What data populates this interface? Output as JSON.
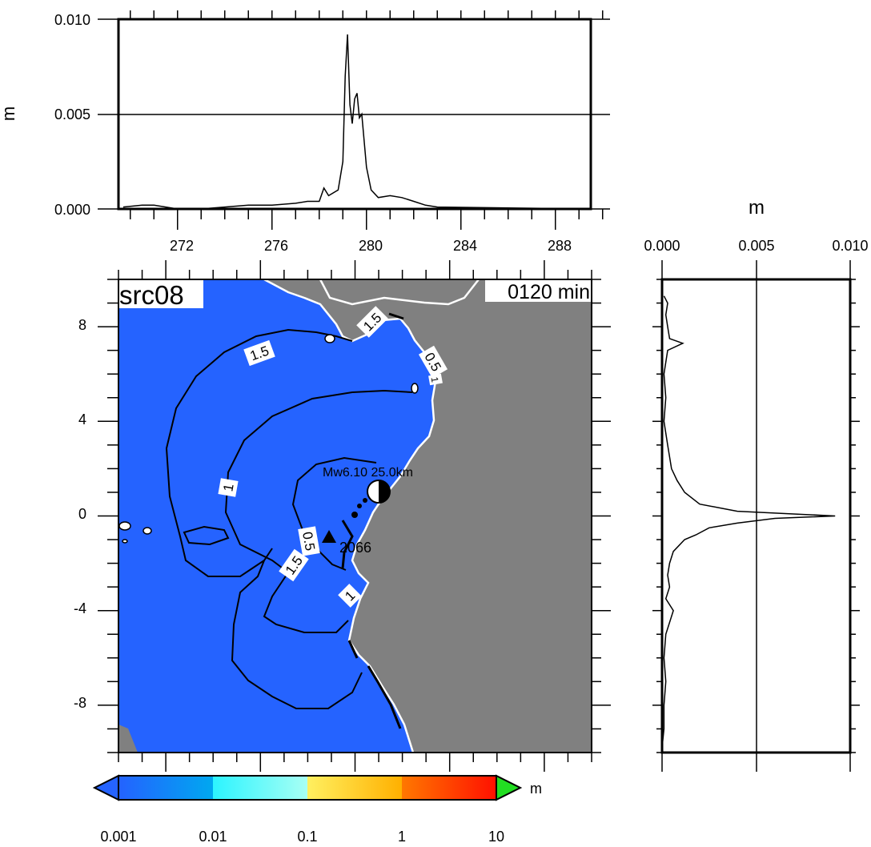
{
  "chart_data": [
    {
      "panel": "top-profile",
      "type": "line",
      "ylabel": "m",
      "xlabel": "",
      "xlim": [
        269.5,
        290.5
      ],
      "ylim": [
        0.0,
        0.01
      ],
      "x_ticks": [
        "272",
        "276",
        "280",
        "284",
        "288"
      ],
      "y_ticks": [
        "0.000",
        "0.005",
        "0.010"
      ],
      "reference_line_y": 0.005,
      "series": [
        {
          "x": [
            269.7,
            270.5,
            271.0,
            271.5,
            272,
            273,
            274,
            275,
            276,
            277,
            277.5,
            278.0,
            278.2,
            278.4,
            278.8,
            279.0,
            279.1,
            279.2,
            279.3,
            279.4,
            279.5,
            279.6,
            279.7,
            279.8,
            280.0,
            280.2,
            280.5,
            281.0,
            281.5,
            282.0,
            282.5,
            283.0,
            289.5
          ],
          "values": [
            0.0001,
            0.0002,
            0.0002,
            0.0001,
            0.0,
            0.0,
            0.0001,
            0.0002,
            0.0002,
            0.0003,
            0.0004,
            0.0004,
            0.0011,
            0.0007,
            0.001,
            0.0025,
            0.007,
            0.0092,
            0.0055,
            0.0045,
            0.0058,
            0.0061,
            0.0048,
            0.005,
            0.0022,
            0.001,
            0.0006,
            0.0007,
            0.0006,
            0.0004,
            0.0002,
            0.0001,
            0.0
          ]
        }
      ]
    },
    {
      "panel": "right-profile",
      "type": "line",
      "xlabel": "m",
      "xlim": [
        0.0,
        0.01
      ],
      "x_ticks": [
        "0.000",
        "0.005",
        "0.010"
      ],
      "ylim": [
        -10,
        10
      ],
      "reference_line_x": 0.005,
      "series": [
        {
          "y": [
            9.3,
            9.0,
            8.5,
            8.0,
            7.5,
            7.3,
            7.0,
            6.5,
            6.0,
            5.0,
            4.0,
            3.0,
            2.0,
            1.5,
            1.0,
            0.5,
            0.2,
            0.0,
            -0.1,
            -0.3,
            -0.5,
            -0.8,
            -1.0,
            -1.5,
            -2.0,
            -2.5,
            -3.0,
            -3.5,
            -4.0,
            -5.0,
            -6.0,
            -7.0,
            -8.0,
            -9.0,
            -9.8
          ],
          "values": [
            0.0001,
            0.0003,
            0.0002,
            0.0003,
            0.0004,
            0.0011,
            0.0003,
            0.0002,
            0.0001,
            0.0002,
            0.0001,
            0.0003,
            0.0005,
            0.0008,
            0.0012,
            0.002,
            0.004,
            0.0092,
            0.006,
            0.004,
            0.0025,
            0.0018,
            0.0012,
            0.0006,
            0.0004,
            0.0003,
            0.0004,
            0.0002,
            0.0006,
            0.0002,
            0.0001,
            0.0002,
            0.0001,
            0.0001,
            0.0
          ]
        }
      ]
    },
    {
      "panel": "map",
      "type": "heatmap",
      "title": "src08",
      "time_label": "0120 min",
      "ylim": [
        -10,
        10
      ],
      "y_ticks": [
        "8",
        "4",
        "0",
        "-4",
        "-8"
      ],
      "station_label": "2066",
      "source_label": "Mw6.10 25.0km",
      "contour_labels": [
        "1.5",
        "1.5",
        "0.5",
        "1",
        "1",
        "1.5",
        "0.5",
        "1"
      ],
      "colors": {
        "ocean": "#2563ff",
        "land": "#808080",
        "coast": "#ffffff",
        "contour": "#000000"
      },
      "colorbar": {
        "unit": "m",
        "scale": "log",
        "tick_labels": [
          "0.001",
          "0.01",
          "0.1",
          "1",
          "10"
        ],
        "under_color": "#2563ff",
        "over_color": "#22dd22"
      }
    }
  ]
}
